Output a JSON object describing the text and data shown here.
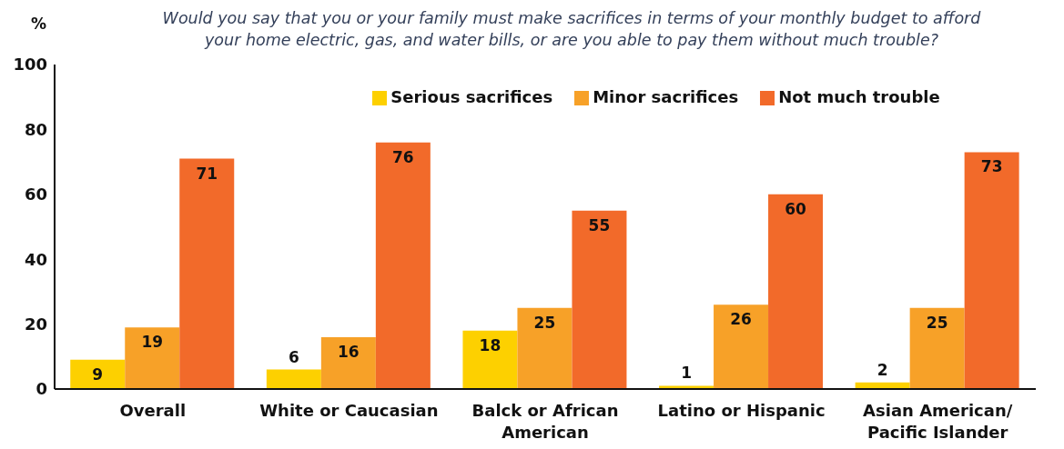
{
  "chart_data": {
    "type": "bar",
    "title": "Would you say that you or your family must make sacrifices in terms of your monthly budget to afford your home electric, gas, and water bills, or are you able to pay them without much trouble?",
    "ylabel": "%",
    "categories": [
      "Overall",
      "White or Caucasian",
      "Balck or African American",
      "Latino or Hispanic",
      "Asian American/ Pacific Islander"
    ],
    "series": [
      {
        "name": "Serious sacrifices",
        "color": "#fdd000",
        "values": [
          9,
          6,
          18,
          1,
          2
        ]
      },
      {
        "name": "Minor sacrifices",
        "color": "#f7a128",
        "values": [
          19,
          16,
          25,
          26,
          25
        ]
      },
      {
        "name": "Not much trouble",
        "color": "#f26a2a",
        "values": [
          71,
          76,
          55,
          60,
          73
        ]
      }
    ],
    "ylim": [
      0,
      100
    ],
    "yticks": [
      0,
      20,
      40,
      60,
      80,
      100
    ],
    "legend": "top",
    "data_labels": true
  }
}
